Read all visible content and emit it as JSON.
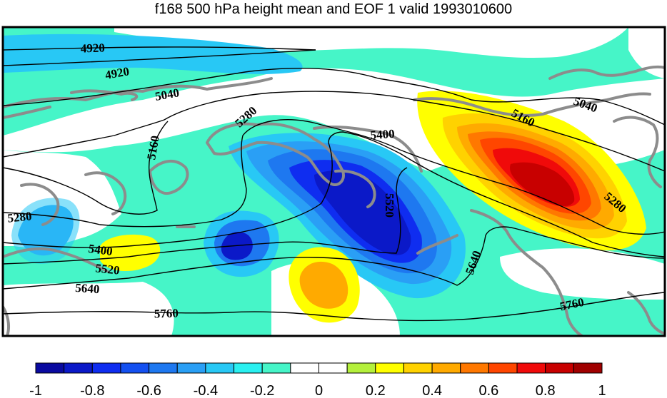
{
  "title": "f168 500 hPa height mean and EOF 1 valid 1993010600",
  "contour_labels": [
    "4920",
    "4920",
    "5040",
    "5040",
    "5160",
    "5160",
    "5280",
    "5280",
    "5280",
    "5400",
    "5400",
    "5520",
    "5520",
    "5640",
    "5640",
    "5760",
    "5760"
  ],
  "colorbar": {
    "min": -1,
    "max": 1,
    "tick_labels": [
      "-1",
      "-0.8",
      "-0.6",
      "-0.4",
      "-0.2",
      "0",
      "0.2",
      "0.4",
      "0.6",
      "0.8",
      "1"
    ],
    "colors": [
      "#0a0aa0",
      "#0b19c8",
      "#0f2df0",
      "#1450f0",
      "#1e78f0",
      "#2a9ff5",
      "#28c8f5",
      "#2af0f0",
      "#46f5c8",
      "#ffffff",
      "#ffffff",
      "#b4f03c",
      "#ffff00",
      "#ffd200",
      "#ffaa00",
      "#ff7800",
      "#ff4600",
      "#f00a0a",
      "#c80000",
      "#a00000"
    ]
  }
}
